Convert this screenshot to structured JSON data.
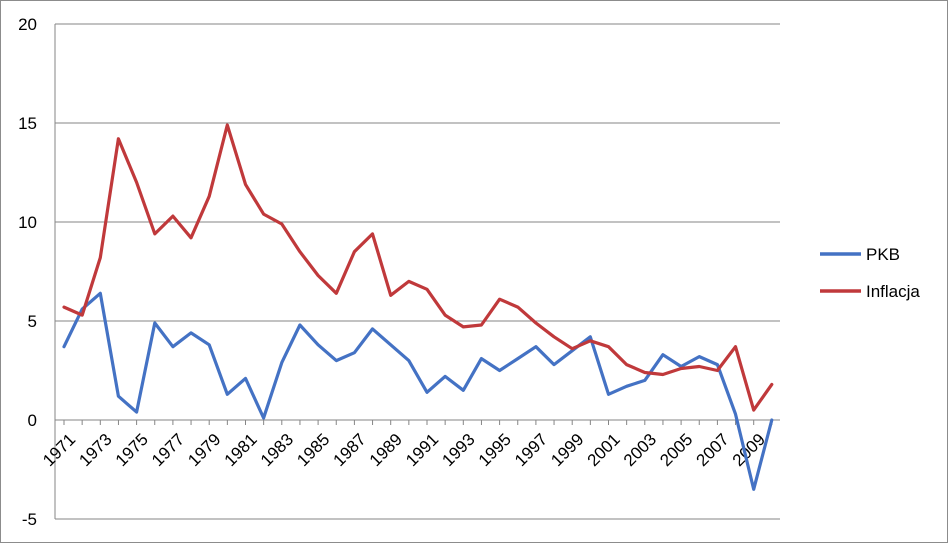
{
  "chart_data": {
    "type": "line",
    "title": "",
    "xlabel": "",
    "ylabel": "",
    "ylim": [
      -5,
      20
    ],
    "yticks": [
      -5,
      0,
      5,
      10,
      15,
      20
    ],
    "grid": true,
    "legend_position": "right",
    "x": [
      1971,
      1972,
      1973,
      1974,
      1975,
      1976,
      1977,
      1978,
      1979,
      1980,
      1981,
      1982,
      1983,
      1984,
      1985,
      1986,
      1987,
      1988,
      1989,
      1990,
      1991,
      1992,
      1993,
      1994,
      1995,
      1996,
      1997,
      1998,
      1999,
      2000,
      2001,
      2002,
      2003,
      2004,
      2005,
      2006,
      2007,
      2008,
      2009,
      2010
    ],
    "xtick_labels": [
      "1971",
      "1973",
      "1975",
      "1977",
      "1979",
      "1981",
      "1983",
      "1985",
      "1987",
      "1989",
      "1991",
      "1993",
      "1995",
      "1997",
      "1999",
      "2001",
      "2003",
      "2005",
      "2007",
      "2009"
    ],
    "series": [
      {
        "name": "PKB",
        "color": "#4472c4",
        "values": [
          3.7,
          5.6,
          6.4,
          1.2,
          0.4,
          4.9,
          3.7,
          4.4,
          3.8,
          1.3,
          2.1,
          0.1,
          2.9,
          4.8,
          3.8,
          3.0,
          3.4,
          4.6,
          3.8,
          3.0,
          1.4,
          2.2,
          1.5,
          3.1,
          2.5,
          3.1,
          3.7,
          2.8,
          3.5,
          4.2,
          1.3,
          1.7,
          2.0,
          3.3,
          2.7,
          3.2,
          2.8,
          0.3,
          -3.5,
          0.0
        ]
      },
      {
        "name": "Inflacja",
        "color": "#c0393b",
        "values": [
          5.7,
          5.3,
          8.2,
          14.2,
          12.0,
          9.4,
          10.3,
          9.2,
          11.3,
          14.9,
          11.9,
          10.4,
          9.9,
          8.5,
          7.3,
          6.4,
          8.5,
          9.4,
          6.3,
          7.0,
          6.6,
          5.3,
          4.7,
          4.8,
          6.1,
          5.7,
          4.9,
          4.2,
          3.6,
          4.0,
          3.7,
          2.8,
          2.4,
          2.3,
          2.6,
          2.7,
          2.5,
          3.7,
          0.5,
          1.8
        ]
      }
    ]
  }
}
